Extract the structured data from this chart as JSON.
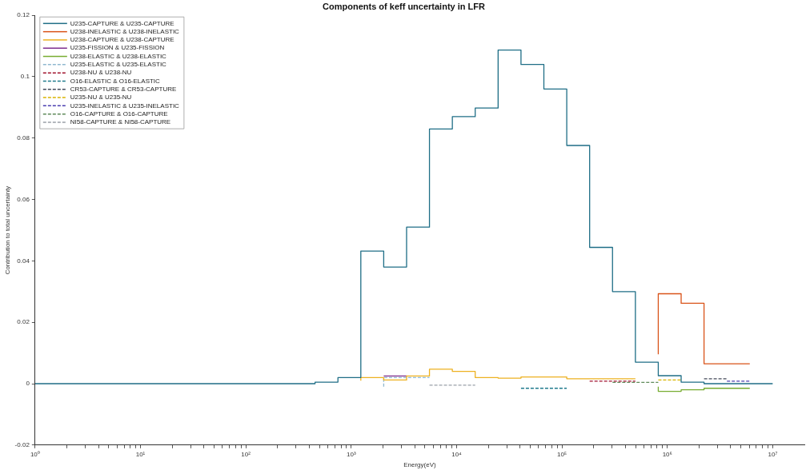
{
  "chart_data": {
    "type": "step",
    "title": "Components of keff uncertainty in LFR",
    "xlabel": "Energy(eV)",
    "ylabel": "Contribution to total uncertainty",
    "log": "x",
    "grid": false,
    "legend": "top left",
    "marker": "none",
    "xlim": [
      1,
      20000000
    ],
    "ylim": [
      -0.02,
      0.12
    ],
    "xticks": [
      {
        "value": 1,
        "label": "10⁰"
      },
      {
        "value": 2,
        "label": null
      },
      {
        "value": 3,
        "label": null
      },
      {
        "value": 4,
        "label": null
      },
      {
        "value": 5,
        "label": null
      },
      {
        "value": 6,
        "label": null
      },
      {
        "value": 7,
        "label": null
      },
      {
        "value": 8,
        "label": null
      },
      {
        "value": 9,
        "label": null
      },
      {
        "value": 10,
        "label": "10¹"
      },
      {
        "value": 20,
        "label": null
      },
      {
        "value": 30,
        "label": null
      },
      {
        "value": 40,
        "label": null
      },
      {
        "value": 50,
        "label": null
      },
      {
        "value": 60,
        "label": null
      },
      {
        "value": 70,
        "label": null
      },
      {
        "value": 80,
        "label": null
      },
      {
        "value": 90,
        "label": null
      },
      {
        "value": 100,
        "label": "10²"
      },
      {
        "value": 200,
        "label": null
      },
      {
        "value": 300,
        "label": null
      },
      {
        "value": 400,
        "label": null
      },
      {
        "value": 500,
        "label": null
      },
      {
        "value": 600,
        "label": null
      },
      {
        "value": 700,
        "label": null
      },
      {
        "value": 800,
        "label": null
      },
      {
        "value": 900,
        "label": null
      },
      {
        "value": 1000,
        "label": "10³"
      },
      {
        "value": 2000,
        "label": null
      },
      {
        "value": 3000,
        "label": null
      },
      {
        "value": 4000,
        "label": null
      },
      {
        "value": 5000,
        "label": null
      },
      {
        "value": 6000,
        "label": null
      },
      {
        "value": 7000,
        "label": null
      },
      {
        "value": 8000,
        "label": null
      },
      {
        "value": 9000,
        "label": null
      },
      {
        "value": 10000,
        "label": "10⁴"
      },
      {
        "value": 20000,
        "label": null
      },
      {
        "value": 30000,
        "label": null
      },
      {
        "value": 40000,
        "label": null
      },
      {
        "value": 50000,
        "label": null
      },
      {
        "value": 60000,
        "label": null
      },
      {
        "value": 70000,
        "label": null
      },
      {
        "value": 80000,
        "label": null
      },
      {
        "value": 90000,
        "label": null
      },
      {
        "value": 100000,
        "label": "10⁵"
      },
      {
        "value": 200000,
        "label": null
      },
      {
        "value": 300000,
        "label": null
      },
      {
        "value": 400000,
        "label": null
      },
      {
        "value": 500000,
        "label": null
      },
      {
        "value": 600000,
        "label": null
      },
      {
        "value": 700000,
        "label": null
      },
      {
        "value": 800000,
        "label": null
      },
      {
        "value": 900000,
        "label": null
      },
      {
        "value": 1000000,
        "label": "10⁶"
      },
      {
        "value": 2000000,
        "label": null
      },
      {
        "value": 3000000,
        "label": null
      },
      {
        "value": 4000000,
        "label": null
      },
      {
        "value": 5000000,
        "label": null
      },
      {
        "value": 6000000,
        "label": null
      },
      {
        "value": 7000000,
        "label": null
      },
      {
        "value": 8000000,
        "label": null
      },
      {
        "value": 9000000,
        "label": null
      },
      {
        "value": 10000000,
        "label": "10⁷"
      }
    ],
    "yticks": [
      -0.02,
      0,
      0.02,
      0.04,
      0.06,
      0.08,
      0.1,
      0.12
    ],
    "series": [
      {
        "name": "U235-CAPTURE & U235-CAPTURE",
        "color": "#1f6e86",
        "line_style": "solid",
        "x": [
          1,
          454,
          748.5,
          1234,
          2035,
          3355,
          5531,
          9119,
          15030,
          24790,
          40870,
          67380,
          111100,
          183200,
          302000,
          497900,
          820900,
          1353000,
          2231000,
          3679000,
          6065000,
          10000000
        ],
        "values": [
          0,
          0,
          0.0005,
          0.002,
          0.0432,
          0.038,
          0.051,
          0.083,
          0.087,
          0.0898,
          0.1087,
          0.104,
          0.096,
          0.0776,
          0.0444,
          0.03,
          0.007,
          0.0026,
          0.0005,
          0,
          0,
          0
        ]
      },
      {
        "name": "U238-INELASTIC & U238-INELASTIC",
        "color": "#d95319",
        "line_style": "solid",
        "x": [
          820900,
          1353000,
          2231000,
          3679000,
          6065000
        ],
        "values": [
          0.0096,
          0.0293,
          0.0262,
          0.0065,
          0.0065
        ]
      },
      {
        "name": "U238-CAPTURE & U238-CAPTURE",
        "color": "#edb120",
        "line_style": "solid",
        "x": [
          1234,
          2035,
          3355,
          5531,
          9119,
          15030,
          24790,
          40870,
          67380,
          111100,
          183200,
          302000,
          497900
        ],
        "values": [
          0.001,
          0.002,
          0.0012,
          0.0025,
          0.0047,
          0.004,
          0.002,
          0.0018,
          0.0022,
          0.0022,
          0.0016,
          0.0016,
          0.0016
        ]
      },
      {
        "name": "U235-FISSION & U235-FISSION",
        "color": "#7e2f8e",
        "line_style": "solid",
        "x": [
          2035,
          3355
        ],
        "values": [
          0.0025,
          0.0025
        ]
      },
      {
        "name": "U238-ELASTIC & U238-ELASTIC",
        "color": "#77ac30",
        "line_style": "solid",
        "x": [
          820900,
          1353000,
          2231000,
          3679000,
          6065000
        ],
        "values": [
          -0.001,
          -0.0025,
          -0.002,
          -0.0015,
          -0.0015
        ]
      },
      {
        "name": "U235-ELASTIC & U235-ELASTIC",
        "color": "#8fb8d0",
        "line_style": "dashed",
        "x": [
          2035,
          3355,
          5531
        ],
        "values": [
          -0.001,
          0.002,
          0.002
        ]
      },
      {
        "name": "U238-NU & U238-NU",
        "color": "#a2142f",
        "line_style": "dashed",
        "x": [
          183200,
          302000,
          497900
        ],
        "values": [
          0.0008,
          0.0008,
          0.0008
        ]
      },
      {
        "name": "O16-ELASTIC & O16-ELASTIC",
        "color": "#1f7a8c",
        "line_style": "dashed",
        "x": [
          40870,
          67380,
          111100
        ],
        "values": [
          -0.0015,
          -0.0015,
          -0.0015
        ]
      },
      {
        "name": "CR53-CAPTURE & CR53-CAPTURE",
        "color": "#444a5a",
        "line_style": "dashed",
        "x": [
          2231000,
          3679000
        ],
        "values": [
          0.0016,
          0.0016
        ]
      },
      {
        "name": "U235-NU & U235-NU",
        "color": "#d9b400",
        "line_style": "dashed",
        "x": [
          820900,
          1353000
        ],
        "values": [
          0.0012,
          0.0012
        ]
      },
      {
        "name": "U235-INELASTIC & U235-INELASTIC",
        "color": "#4b3fb0",
        "line_style": "dashed",
        "x": [
          3679000,
          6065000
        ],
        "values": [
          0.0008,
          0.0008
        ]
      },
      {
        "name": "O16-CAPTURE & O16-CAPTURE",
        "color": "#5f8a5a",
        "line_style": "dashed",
        "x": [
          302000,
          497900,
          820900
        ],
        "values": [
          0.0004,
          0.0004,
          0.0004
        ]
      },
      {
        "name": "NI58-CAPTURE & NI58-CAPTURE",
        "color": "#9aa0a8",
        "line_style": "dashed",
        "x": [
          5531,
          9119,
          15030
        ],
        "values": [
          -0.0005,
          -0.0005,
          -0.0005
        ]
      }
    ]
  }
}
